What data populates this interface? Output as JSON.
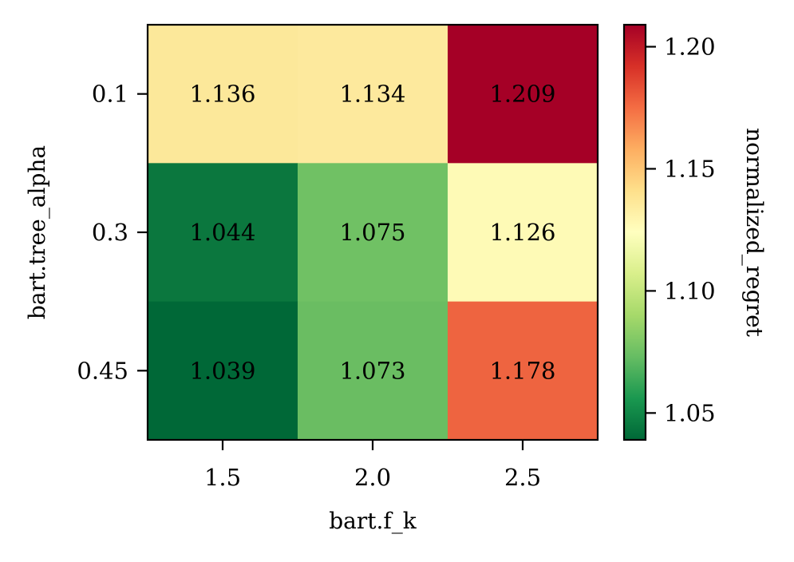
{
  "chart_data": {
    "type": "heatmap",
    "x_categories": [
      "1.5",
      "2.0",
      "2.5"
    ],
    "y_categories": [
      "0.1",
      "0.3",
      "0.45"
    ],
    "xlabel": "bart.f_k",
    "ylabel": "bart.tree_alpha",
    "colorbar_label": "normalized_regret",
    "values": [
      [
        1.136,
        1.134,
        1.209
      ],
      [
        1.044,
        1.075,
        1.126
      ],
      [
        1.039,
        1.073,
        1.178
      ]
    ],
    "value_labels": [
      [
        "1.136",
        "1.134",
        "1.209"
      ],
      [
        "1.044",
        "1.075",
        "1.126"
      ],
      [
        "1.039",
        "1.073",
        "1.178"
      ]
    ],
    "colormap": "RdYlGn_r",
    "colorbar_range": [
      1.039,
      1.209
    ],
    "colorbar_ticks": [
      1.05,
      1.1,
      1.15,
      1.2
    ],
    "colorbar_tick_labels": [
      "1.05",
      "1.10",
      "1.15",
      "1.20"
    ],
    "cell_colors": [
      [
        "#fce89a",
        "#fde99d",
        "#a50026"
      ],
      [
        "#0b773e",
        "#70c164",
        "#fefab6"
      ],
      [
        "#006837",
        "#6abd62",
        "#ee6440"
      ]
    ],
    "grid": false
  }
}
